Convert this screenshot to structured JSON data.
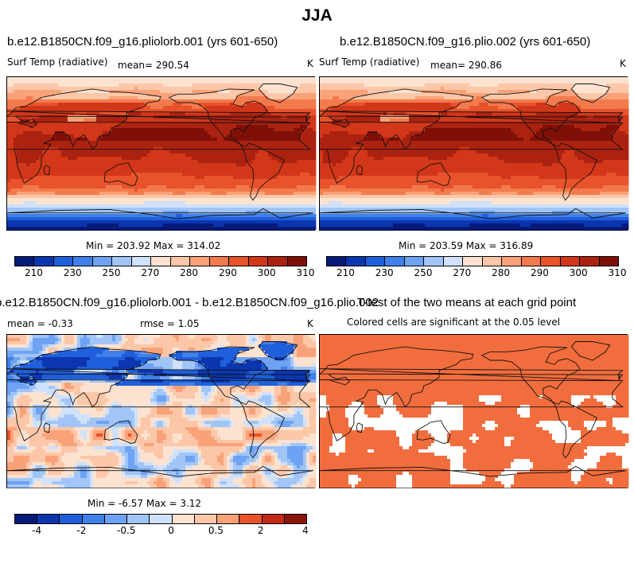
{
  "title": "JJA",
  "chart_data": [
    {
      "type": "heatmap",
      "title": "b.e12.B1850CN.f09_g16.pliolorb.001 (yrs 601-650)",
      "variable": "Surf Temp (radiative)",
      "mean_label": "mean= 290.54",
      "units": "K",
      "minmax_label": "Min = 203.92 Max = 314.02",
      "colorbar_ticks": [
        "210",
        "230",
        "250",
        "270",
        "280",
        "290",
        "300",
        "310"
      ],
      "colorbar_colors": [
        "#061a7a",
        "#0c36b0",
        "#1f5fdb",
        "#3f80ea",
        "#6ea2f2",
        "#a1c5f7",
        "#cfe1fb",
        "#fde2d0",
        "#fcc7a8",
        "#f9a279",
        "#f37a4d",
        "#e8532b",
        "#d2371a",
        "#ac2210",
        "#7f1008"
      ]
    },
    {
      "type": "heatmap",
      "title": "b.e12.B1850CN.f09_g16.plio.002 (yrs 601-650)",
      "variable": "Surf Temp (radiative)",
      "mean_label": "mean= 290.86",
      "units": "K",
      "minmax_label": "Min = 203.59 Max = 316.89",
      "colorbar_ticks": [
        "210",
        "230",
        "250",
        "270",
        "280",
        "290",
        "300",
        "310"
      ],
      "colorbar_colors": [
        "#061a7a",
        "#0c36b0",
        "#1f5fdb",
        "#3f80ea",
        "#6ea2f2",
        "#a1c5f7",
        "#cfe1fb",
        "#fde2d0",
        "#fcc7a8",
        "#f9a279",
        "#f37a4d",
        "#e8532b",
        "#d2371a",
        "#ac2210",
        "#7f1008"
      ]
    },
    {
      "type": "heatmap",
      "title": "b.e12.B1850CN.f09_g16.pliolorb.001 - b.e12.B1850CN.f09_g16.plio.002",
      "mean_label": "mean =   -0.33",
      "rmse_label": "rmse =    1.05",
      "units": "K",
      "minmax_label": "Min =  -6.57 Max =   3.12",
      "colorbar_ticks": [
        "-4",
        "-2",
        "-0.5",
        "0",
        "0.5",
        "2",
        "4"
      ],
      "colorbar_colors": [
        "#061a7a",
        "#0c36b0",
        "#1f5fdb",
        "#3f80ea",
        "#6ea2f2",
        "#a1c5f7",
        "#cfe1fb",
        "#fde2d0",
        "#fcc7a8",
        "#f9a279",
        "#e8532b",
        "#c42a15",
        "#8a1408"
      ]
    },
    {
      "type": "heatmap",
      "title": "T-test of the two means at each grid point",
      "subtitle": "Colored cells are significant at the 0.05 level",
      "significant_color": "#f26d3d"
    }
  ]
}
